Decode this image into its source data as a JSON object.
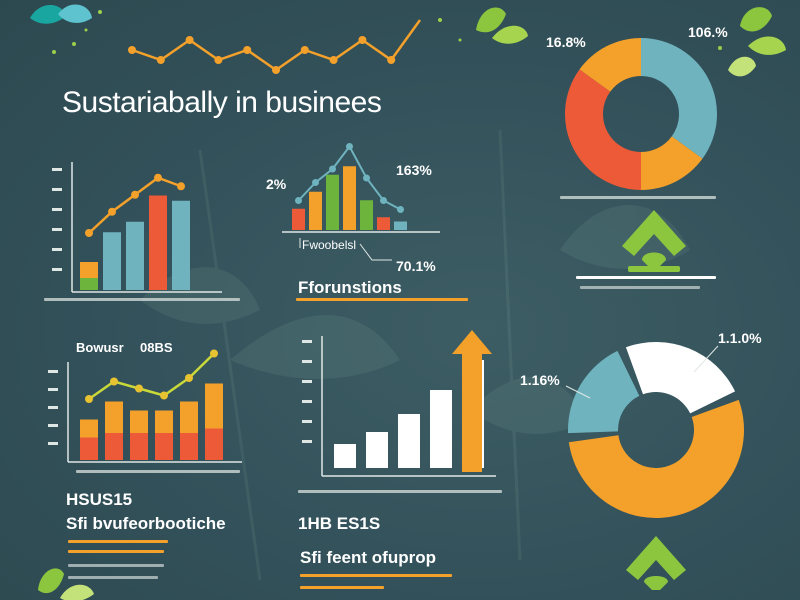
{
  "title": "Sustariabally in businees",
  "colors": {
    "background": "#34525a",
    "orange": "#f4a12b",
    "red": "#ec5a38",
    "teal": "#6fb3bf",
    "green": "#6db43c",
    "white": "#ffffff"
  },
  "labels": {
    "donut1_left": "16.8%",
    "donut1_right": "106.%",
    "small_chart_left": "2%",
    "small_chart_right": "163%",
    "small_chart_caption": "Fwoobelsl",
    "small_chart_value": "70.1%",
    "foruntions_heading": "Fforunstions",
    "row2_left_label": "Bowusr",
    "row2_left_value": "08BS",
    "donut2_left": "1.16%",
    "donut2_right": "1.1.0%",
    "bottom_heading_1": "HSUS15",
    "bottom_sub_1": "Sfi bvufeorbootiche",
    "bottom_heading_2": "1HB ES1S",
    "bottom_sub_2": "Sfi feent ofuprop"
  },
  "chart_data": [
    {
      "type": "line",
      "name": "top-trend",
      "values": [
        3,
        2,
        4,
        2,
        3,
        1,
        3,
        2,
        4,
        2,
        6
      ]
    },
    {
      "type": "bar",
      "name": "left-stacked-bars",
      "series": [
        {
          "name": "",
          "values": [
            20,
            0,
            0,
            0,
            0
          ]
        },
        {
          "name": "",
          "values": [
            0,
            55,
            65,
            90,
            85
          ]
        },
        {
          "name": "",
          "values": [
            10,
            0,
            0,
            0,
            0
          ]
        }
      ],
      "trend": [
        20,
        45,
        65,
        85,
        75
      ]
    },
    {
      "type": "bar",
      "name": "small-colored-bars",
      "values": [
        25,
        45,
        65,
        75,
        35,
        15,
        10
      ],
      "trend": [
        35,
        55,
        70,
        95,
        60,
        35,
        25
      ]
    },
    {
      "type": "pie",
      "name": "donut-top",
      "values": [
        35,
        15,
        35,
        15
      ]
    },
    {
      "type": "bar",
      "name": "left-lower-stacked",
      "series": [
        {
          "name": "",
          "values": [
            25,
            30,
            30,
            30,
            30,
            35
          ]
        },
        {
          "name": "",
          "values": [
            20,
            35,
            25,
            25,
            35,
            50
          ]
        }
      ],
      "trend": [
        30,
        55,
        45,
        35,
        60,
        95
      ]
    },
    {
      "type": "bar",
      "name": "white-rising-bars",
      "values": [
        20,
        30,
        45,
        65,
        90
      ]
    },
    {
      "type": "pie",
      "name": "donut-bottom",
      "values": [
        55,
        20,
        25
      ]
    }
  ]
}
